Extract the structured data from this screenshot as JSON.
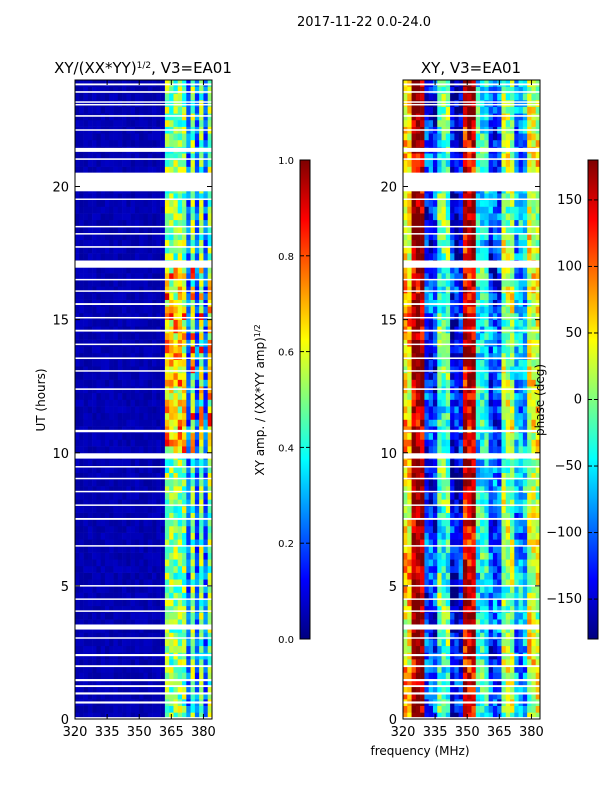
{
  "figure": {
    "suptitle": "2017-11-22 0.0-24.0",
    "shared_xlabel": "frequency (MHz)"
  },
  "colors": {
    "jet": [
      "#00007f",
      "#0000ff",
      "#007fff",
      "#00ffff",
      "#7fff7f",
      "#ffff00",
      "#ff7f00",
      "#ff0000",
      "#7f0000"
    ],
    "gap": "#ffffff"
  },
  "chart_data": [
    {
      "type": "heatmap",
      "title": "XY/(XX*YY)",
      "title_exponent": "1/2",
      "title_suffix": ", V3=EA01",
      "xlabel": "",
      "ylabel": "UT (hours)",
      "xlim": [
        320,
        384
      ],
      "ylim": [
        0,
        24
      ],
      "xticks": [
        "320",
        "335",
        "350",
        "365",
        "380"
      ],
      "xtick_values": [
        320,
        335,
        350,
        365,
        380
      ],
      "yticks": [
        "0",
        "5",
        "10",
        "15",
        "20"
      ],
      "ytick_values": [
        0,
        5,
        10,
        15,
        20
      ],
      "quantity": "amplitude",
      "background_value": 0.03,
      "low_band_mhz": [
        320,
        361
      ],
      "bright_band_mhz": [
        362,
        384
      ],
      "bright_columns_mhz": [
        363.5,
        366,
        369,
        371,
        375.5,
        379,
        383
      ],
      "colorbar": {
        "label": "XY amp. / (XX*YY amp)",
        "label_exponent": "1/2",
        "range": [
          0.0,
          1.0
        ],
        "ticks": [
          "0.0",
          "0.2",
          "0.4",
          "0.6",
          "0.8",
          "1.0"
        ],
        "tick_values": [
          0.0,
          0.2,
          0.4,
          0.6,
          0.8,
          1.0
        ]
      }
    },
    {
      "type": "heatmap",
      "title": "XY, V3=EA01",
      "xlabel": "frequency (MHz)",
      "ylabel": "",
      "xlim": [
        320,
        384
      ],
      "ylim": [
        0,
        24
      ],
      "xticks": [
        "320",
        "335",
        "350",
        "365",
        "380"
      ],
      "xtick_values": [
        320,
        335,
        350,
        365,
        380
      ],
      "yticks": [
        "0",
        "5",
        "10",
        "15",
        "20"
      ],
      "ytick_values": [
        0,
        5,
        10,
        15,
        20
      ],
      "quantity": "phase",
      "phase_bands_deg": [
        {
          "from_mhz": 320,
          "to_mhz": 324,
          "deg": 60
        },
        {
          "from_mhz": 324,
          "to_mhz": 330,
          "deg": 170
        },
        {
          "from_mhz": 330,
          "to_mhz": 336,
          "deg": -120
        },
        {
          "from_mhz": 336,
          "to_mhz": 342,
          "deg": -20
        },
        {
          "from_mhz": 342,
          "to_mhz": 348,
          "deg": -140
        },
        {
          "from_mhz": 348,
          "to_mhz": 354,
          "deg": 150
        },
        {
          "from_mhz": 354,
          "to_mhz": 360,
          "deg": -40
        },
        {
          "from_mhz": 360,
          "to_mhz": 366,
          "deg": -110
        },
        {
          "from_mhz": 366,
          "to_mhz": 372,
          "deg": 10
        },
        {
          "from_mhz": 372,
          "to_mhz": 378,
          "deg": -70
        },
        {
          "from_mhz": 378,
          "to_mhz": 384,
          "deg": 30
        }
      ],
      "colorbar": {
        "label": "phase (deg)",
        "range": [
          -180,
          180
        ],
        "ticks": [
          "−150",
          "−100",
          "−50",
          "0",
          "50",
          "100",
          "150"
        ],
        "tick_values": [
          -150,
          -100,
          -50,
          0,
          50,
          100,
          150
        ]
      }
    }
  ],
  "gaps_ut_hours": [
    [
      0.0,
      0.07
    ],
    [
      0.58,
      0.66
    ],
    [
      0.92,
      1.0
    ],
    [
      1.2,
      1.27
    ],
    [
      1.42,
      1.5
    ],
    [
      1.95,
      2.02
    ],
    [
      2.36,
      2.44
    ],
    [
      3.02,
      3.07
    ],
    [
      3.36,
      3.55
    ],
    [
      4.03,
      4.08
    ],
    [
      4.48,
      4.53
    ],
    [
      4.98,
      5.03
    ],
    [
      6.48,
      6.53
    ],
    [
      7.48,
      7.55
    ],
    [
      8.02,
      8.06
    ],
    [
      8.52,
      8.57
    ],
    [
      9.02,
      9.06
    ],
    [
      9.45,
      9.5
    ],
    [
      9.78,
      9.98
    ],
    [
      10.77,
      10.86
    ],
    [
      12.36,
      12.42
    ],
    [
      13.05,
      13.1
    ],
    [
      13.52,
      13.58
    ],
    [
      14.05,
      14.1
    ],
    [
      14.55,
      14.62
    ],
    [
      15.05,
      15.1
    ],
    [
      15.55,
      15.62
    ],
    [
      16.05,
      16.1
    ],
    [
      16.48,
      16.53
    ],
    [
      16.95,
      17.22
    ],
    [
      17.7,
      17.76
    ],
    [
      18.2,
      18.25
    ],
    [
      18.48,
      18.52
    ],
    [
      19.5,
      19.55
    ],
    [
      19.82,
      20.52
    ],
    [
      21.0,
      21.06
    ],
    [
      21.3,
      21.45
    ],
    [
      22.1,
      22.15
    ],
    [
      22.62,
      22.68
    ],
    [
      23.05,
      23.1
    ],
    [
      23.15,
      23.2
    ],
    [
      23.52,
      23.58
    ],
    [
      23.8,
      23.87
    ]
  ]
}
